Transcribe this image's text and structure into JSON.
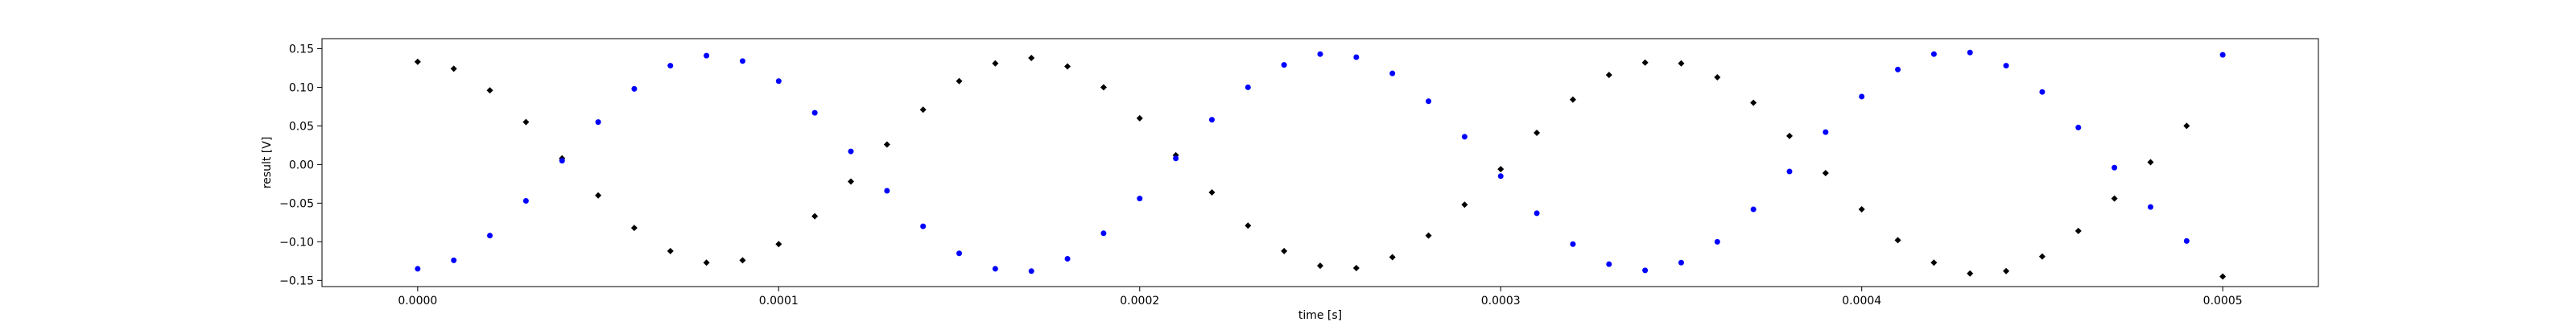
{
  "chart_data": {
    "type": "scatter",
    "title": "",
    "xlabel": "time [s]",
    "ylabel": "result [V]",
    "xlim": [
      -2.65e-05,
      0.0005265
    ],
    "ylim": [
      -0.158,
      0.163
    ],
    "grid": false,
    "legend": "none",
    "x_ticks": [
      {
        "value": 0.0,
        "label": "0.0000"
      },
      {
        "value": 0.0001,
        "label": "0.0001"
      },
      {
        "value": 0.0002,
        "label": "0.0002"
      },
      {
        "value": 0.0003,
        "label": "0.0003"
      },
      {
        "value": 0.0004,
        "label": "0.0004"
      },
      {
        "value": 0.0005,
        "label": "0.0005"
      }
    ],
    "y_ticks": [
      {
        "value": 0.15,
        "label": "0.15"
      },
      {
        "value": 0.1,
        "label": "0.10"
      },
      {
        "value": 0.05,
        "label": "0.05"
      },
      {
        "value": 0.0,
        "label": "0.00"
      },
      {
        "value": -0.05,
        "label": "−0.05"
      },
      {
        "value": -0.1,
        "label": "−0.10"
      },
      {
        "value": -0.15,
        "label": "−0.15"
      }
    ],
    "series": [
      {
        "color": "#000000",
        "marker": "diamond",
        "x": [
          0.0,
          1e-05,
          2e-05,
          3e-05,
          4e-05,
          5e-05,
          6e-05,
          7e-05,
          8e-05,
          9e-05,
          0.0001,
          0.00011,
          0.00012,
          0.00013,
          0.00014,
          0.00015,
          0.00016,
          0.00017,
          0.00018,
          0.00019,
          0.0002,
          0.00021,
          0.00022,
          0.00023,
          0.00024,
          0.00025,
          0.00026,
          0.00027,
          0.00028,
          0.00029,
          0.0003,
          0.00031,
          0.00032,
          0.00033,
          0.00034,
          0.00035,
          0.00036,
          0.00037,
          0.00038,
          0.00039,
          0.0004,
          0.00041,
          0.00042,
          0.00043,
          0.00044,
          0.00045,
          0.00046,
          0.00047,
          0.00048,
          0.00049,
          0.0005
        ],
        "y": [
          0.133,
          0.124,
          0.096,
          0.055,
          0.008,
          -0.04,
          -0.082,
          -0.112,
          -0.127,
          -0.124,
          -0.103,
          -0.067,
          -0.022,
          0.026,
          0.071,
          0.108,
          0.131,
          0.138,
          0.127,
          0.1,
          0.06,
          0.012,
          -0.036,
          -0.079,
          -0.112,
          -0.131,
          -0.134,
          -0.12,
          -0.092,
          -0.052,
          -0.006,
          0.041,
          0.084,
          0.116,
          0.132,
          0.131,
          0.113,
          0.08,
          0.037,
          -0.011,
          -0.058,
          -0.098,
          -0.127,
          -0.141,
          -0.138,
          -0.119,
          -0.086,
          -0.044,
          0.003,
          0.05,
          -0.145
        ]
      },
      {
        "color": "#0000ff",
        "marker": "dot",
        "x": [
          0.0,
          1e-05,
          2e-05,
          3e-05,
          4e-05,
          5e-05,
          6e-05,
          7e-05,
          8e-05,
          9e-05,
          0.0001,
          0.00011,
          0.00012,
          0.00013,
          0.00014,
          0.00015,
          0.00016,
          0.00017,
          0.00018,
          0.00019,
          0.0002,
          0.00021,
          0.00022,
          0.00023,
          0.00024,
          0.00025,
          0.00026,
          0.00027,
          0.00028,
          0.00029,
          0.0003,
          0.00031,
          0.00032,
          0.00033,
          0.00034,
          0.00035,
          0.00036,
          0.00037,
          0.00038,
          0.00039,
          0.0004,
          0.00041,
          0.00042,
          0.00043,
          0.00044,
          0.00045,
          0.00046,
          0.00047,
          0.00048,
          0.00049,
          0.0005
        ],
        "y": [
          -0.135,
          -0.124,
          -0.092,
          -0.047,
          0.005,
          0.055,
          0.098,
          0.128,
          0.141,
          0.134,
          0.108,
          0.067,
          0.017,
          -0.034,
          -0.08,
          -0.115,
          -0.135,
          -0.138,
          -0.122,
          -0.089,
          -0.044,
          0.008,
          0.058,
          0.1,
          0.129,
          0.143,
          0.139,
          0.118,
          0.082,
          0.036,
          -0.015,
          -0.063,
          -0.103,
          -0.129,
          -0.137,
          -0.127,
          -0.1,
          -0.058,
          -0.009,
          0.042,
          0.088,
          0.123,
          0.143,
          0.145,
          0.128,
          0.094,
          0.048,
          -0.004,
          -0.055,
          -0.099,
          0.142
        ]
      }
    ]
  }
}
